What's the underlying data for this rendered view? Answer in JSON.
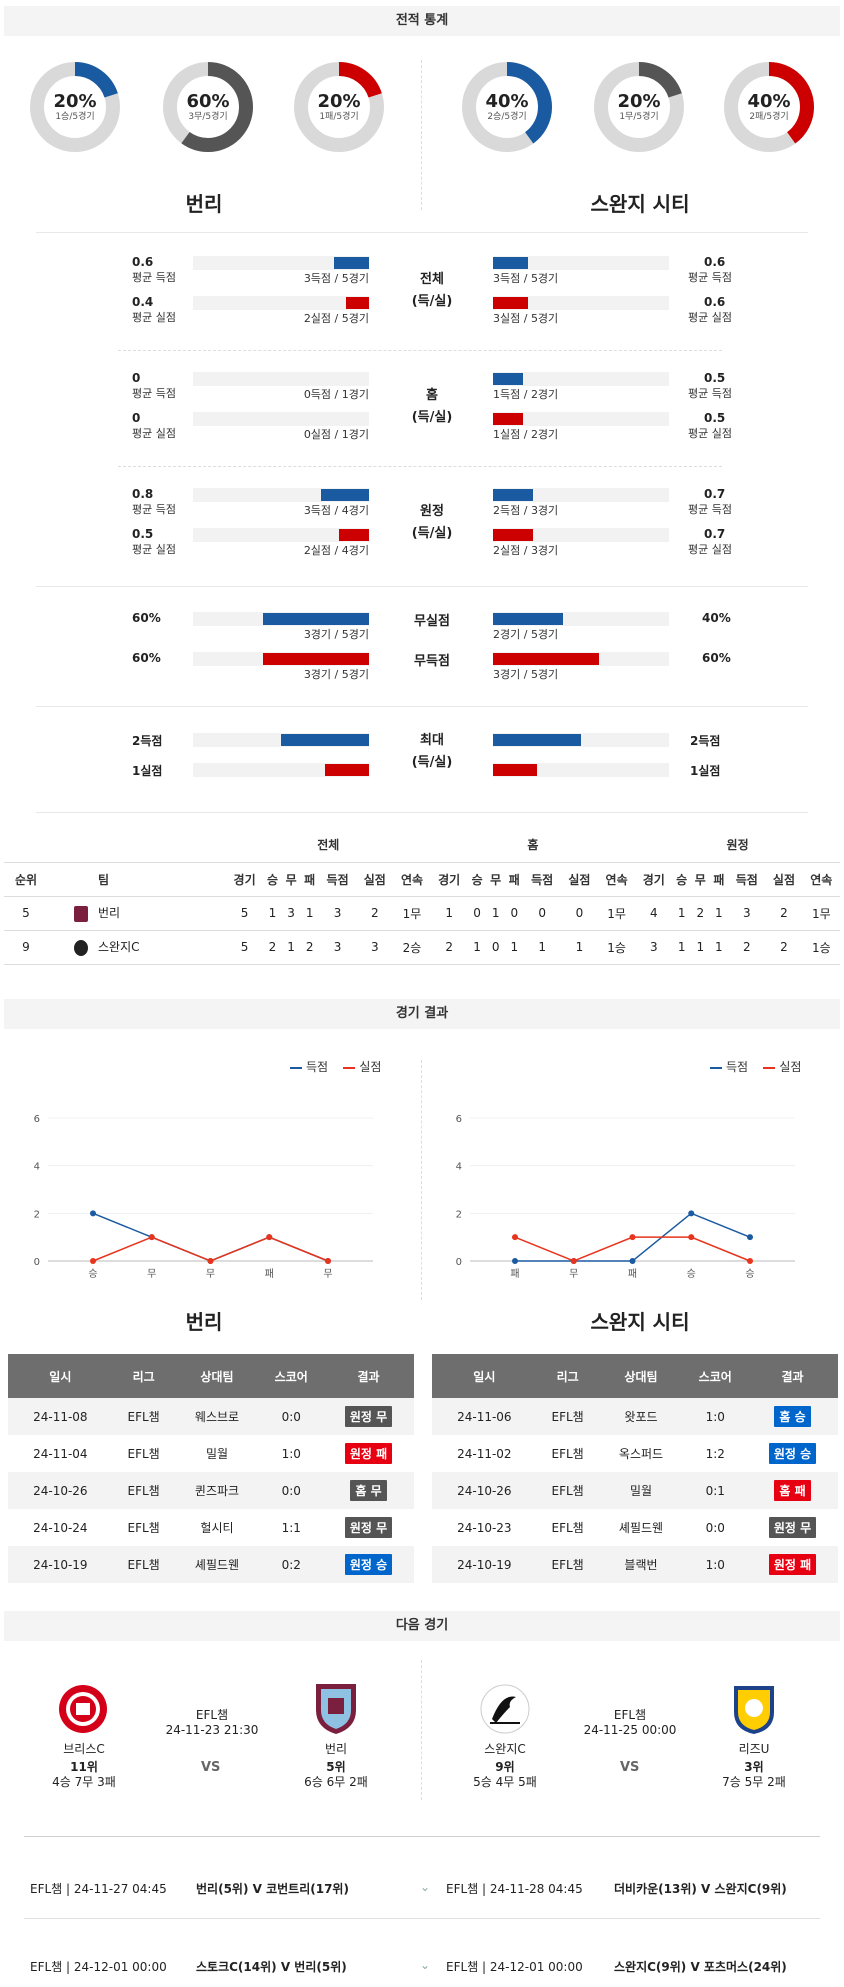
{
  "sections": {
    "stats": "전적 통계",
    "results": "경기 결과",
    "next": "다음 경기"
  },
  "colors": {
    "blue": "#1a5aa0",
    "red": "#cc0000",
    "dark": "#555555",
    "grey": "#d9d9d9"
  },
  "donuts": [
    {
      "pct": "20%",
      "sub": "1승/5경기",
      "value": 0.2,
      "color": "#1a5aa0"
    },
    {
      "pct": "60%",
      "sub": "3무/5경기",
      "value": 0.6,
      "color": "#555555"
    },
    {
      "pct": "20%",
      "sub": "1패/5경기",
      "value": 0.2,
      "color": "#cc0000"
    },
    {
      "pct": "40%",
      "sub": "2승/5경기",
      "value": 0.4,
      "color": "#1a5aa0"
    },
    {
      "pct": "20%",
      "sub": "1무/5경기",
      "value": 0.2,
      "color": "#555555"
    },
    {
      "pct": "40%",
      "sub": "2패/5경기",
      "value": 0.4,
      "color": "#cc0000"
    }
  ],
  "teams": {
    "home": "번리",
    "away": "스완지 시티"
  },
  "groups": [
    {
      "label1": "전체",
      "label2": "(득/실)",
      "rows": [
        {
          "lnum": "0.6",
          "llbl": "평균 득점",
          "lmid": "3득점 / 5경기",
          "lval": 0.2,
          "rnum": "0.6",
          "rlbl": "평균 득점",
          "rmid": "3득점 / 5경기",
          "rval": 0.2,
          "color": "blue"
        },
        {
          "lnum": "0.4",
          "llbl": "평균 실점",
          "lmid": "2실점 / 5경기",
          "lval": 0.13,
          "rnum": "0.6",
          "rlbl": "평균 실점",
          "rmid": "3실점 / 5경기",
          "rval": 0.2,
          "color": "red"
        }
      ]
    },
    {
      "label1": "홈",
      "label2": "(득/실)",
      "rows": [
        {
          "lnum": "0",
          "llbl": "평균 득점",
          "lmid": "0득점 / 1경기",
          "lval": 0,
          "rnum": "0.5",
          "rlbl": "평균 득점",
          "rmid": "1득점 / 2경기",
          "rval": 0.17,
          "color": "blue"
        },
        {
          "lnum": "0",
          "llbl": "평균 실점",
          "lmid": "0실점 / 1경기",
          "lval": 0,
          "rnum": "0.5",
          "rlbl": "평균 실점",
          "rmid": "1실점 / 2경기",
          "rval": 0.17,
          "color": "red"
        }
      ]
    },
    {
      "label1": "원정",
      "label2": "(득/실)",
      "rows": [
        {
          "lnum": "0.8",
          "llbl": "평균 득점",
          "lmid": "3득점 / 4경기",
          "lval": 0.27,
          "rnum": "0.7",
          "rlbl": "평균 득점",
          "rmid": "2득점 / 3경기",
          "rval": 0.23,
          "color": "blue"
        },
        {
          "lnum": "0.5",
          "llbl": "평균 실점",
          "lmid": "2실점 / 4경기",
          "lval": 0.17,
          "rnum": "0.7",
          "rlbl": "평균 실점",
          "rmid": "2실점 / 3경기",
          "rval": 0.23,
          "color": "red"
        }
      ]
    }
  ],
  "pct_rows": [
    {
      "label": "무실점",
      "lnum": "60%",
      "lmid": "3경기 / 5경기",
      "lval": 0.6,
      "rnum": "40%",
      "rmid": "2경기 / 5경기",
      "rval": 0.4,
      "color": "blue"
    },
    {
      "label": "무득점",
      "lnum": "60%",
      "lmid": "3경기 / 5경기",
      "lval": 0.6,
      "rnum": "60%",
      "rmid": "3경기 / 5경기",
      "rval": 0.6,
      "color": "red"
    }
  ],
  "max_group": {
    "label1": "최대",
    "label2": "(득/실)",
    "rows": [
      {
        "lnum": "2득점",
        "lval": 0.5,
        "rnum": "2득점",
        "rval": 0.5,
        "color": "blue"
      },
      {
        "lnum": "1실점",
        "lval": 0.25,
        "rnum": "1실점",
        "rval": 0.25,
        "color": "red"
      }
    ]
  },
  "standings": {
    "groups": [
      "전체",
      "홈",
      "원정"
    ],
    "headers": [
      "순위",
      "팀",
      "경기",
      "승",
      "무",
      "패",
      "득점",
      "실점",
      "연속",
      "경기",
      "승",
      "무",
      "패",
      "득점",
      "실점",
      "연속",
      "경기",
      "승",
      "무",
      "패",
      "득점",
      "실점",
      "연속"
    ],
    "rows": [
      [
        "5",
        "번리",
        "5",
        "1",
        "3",
        "1",
        "3",
        "2",
        "1무",
        "1",
        "0",
        "1",
        "0",
        "0",
        "0",
        "1무",
        "4",
        "1",
        "2",
        "1",
        "3",
        "2",
        "1무"
      ],
      [
        "9",
        "스완지C",
        "5",
        "2",
        "1",
        "2",
        "3",
        "3",
        "2승",
        "2",
        "1",
        "0",
        "1",
        "1",
        "1",
        "1승",
        "3",
        "1",
        "1",
        "1",
        "2",
        "2",
        "1승"
      ]
    ]
  },
  "legend": {
    "scored": "득점",
    "conceded": "실점"
  },
  "chart_data": [
    {
      "type": "line",
      "categories": [
        "승",
        "무",
        "무",
        "패",
        "무"
      ],
      "series": [
        {
          "name": "득점",
          "values": [
            2,
            1,
            0,
            1,
            0
          ],
          "color": "#1a5aa0"
        },
        {
          "name": "실점",
          "values": [
            0,
            1,
            0,
            1,
            0
          ],
          "color": "#e8341c"
        }
      ],
      "ylim": [
        0,
        6
      ],
      "yticks": [
        0,
        2,
        4,
        6
      ]
    },
    {
      "type": "line",
      "categories": [
        "패",
        "무",
        "패",
        "승",
        "승"
      ],
      "series": [
        {
          "name": "득점",
          "values": [
            0,
            0,
            0,
            2,
            1
          ],
          "color": "#1a5aa0"
        },
        {
          "name": "실점",
          "values": [
            1,
            0,
            1,
            1,
            0
          ],
          "color": "#e8341c"
        }
      ],
      "ylim": [
        0,
        6
      ],
      "yticks": [
        0,
        2,
        4,
        6
      ]
    }
  ],
  "result_headers": [
    "일시",
    "리그",
    "상대팀",
    "스코어",
    "결과"
  ],
  "results_home": [
    [
      "24-11-08",
      "EFL챔",
      "웨스브로",
      "0:0",
      "원정 무",
      "grey"
    ],
    [
      "24-11-04",
      "EFL챔",
      "밀월",
      "1:0",
      "원정 패",
      "red"
    ],
    [
      "24-10-26",
      "EFL챔",
      "퀸즈파크",
      "0:0",
      "홈 무",
      "grey"
    ],
    [
      "24-10-24",
      "EFL챔",
      "헐시티",
      "1:1",
      "원정 무",
      "grey"
    ],
    [
      "24-10-19",
      "EFL챔",
      "셰필드웬",
      "0:2",
      "원정 승",
      "blue"
    ]
  ],
  "results_away": [
    [
      "24-11-06",
      "EFL챔",
      "왓포드",
      "1:0",
      "홈 승",
      "blue"
    ],
    [
      "24-11-02",
      "EFL챔",
      "옥스퍼드",
      "1:2",
      "원정 승",
      "blue"
    ],
    [
      "24-10-26",
      "EFL챔",
      "밀월",
      "0:1",
      "홈 패",
      "red"
    ],
    [
      "24-10-23",
      "EFL챔",
      "셰필드웬",
      "0:0",
      "원정 무",
      "grey"
    ],
    [
      "24-10-19",
      "EFL챔",
      "블랙번",
      "1:0",
      "원정 패",
      "red"
    ]
  ],
  "next_left": {
    "league": "EFL챔",
    "datetime": "24-11-23 21:30",
    "vs": "VS",
    "team_a": {
      "name": "브리스C",
      "rank": "11위",
      "record": "4승 7무 3패"
    },
    "team_b": {
      "name": "번리",
      "rank": "5위",
      "record": "6승 6무 2패"
    }
  },
  "next_right": {
    "league": "EFL챔",
    "datetime": "24-11-25 00:00",
    "vs": "VS",
    "team_a": {
      "name": "스완지C",
      "rank": "9위",
      "record": "5승 4무 5패"
    },
    "team_b": {
      "name": "리즈U",
      "rank": "3위",
      "record": "7승 5무 2패"
    }
  },
  "upcoming": [
    {
      "info": "EFL챔 | 24-11-27 04:45",
      "match": "번리(5위) V 코번트리(17위)"
    },
    {
      "info": "EFL챔 | 24-11-28 04:45",
      "match": "더비카운(13위) V 스완지C(9위)"
    },
    {
      "info": "EFL챔 | 24-12-01 00:00",
      "match": "스토크C(14위) V 번리(5위)"
    },
    {
      "info": "EFL챔 | 24-12-01 00:00",
      "match": "스완지C(9위) V 포츠머스(24위)"
    }
  ]
}
